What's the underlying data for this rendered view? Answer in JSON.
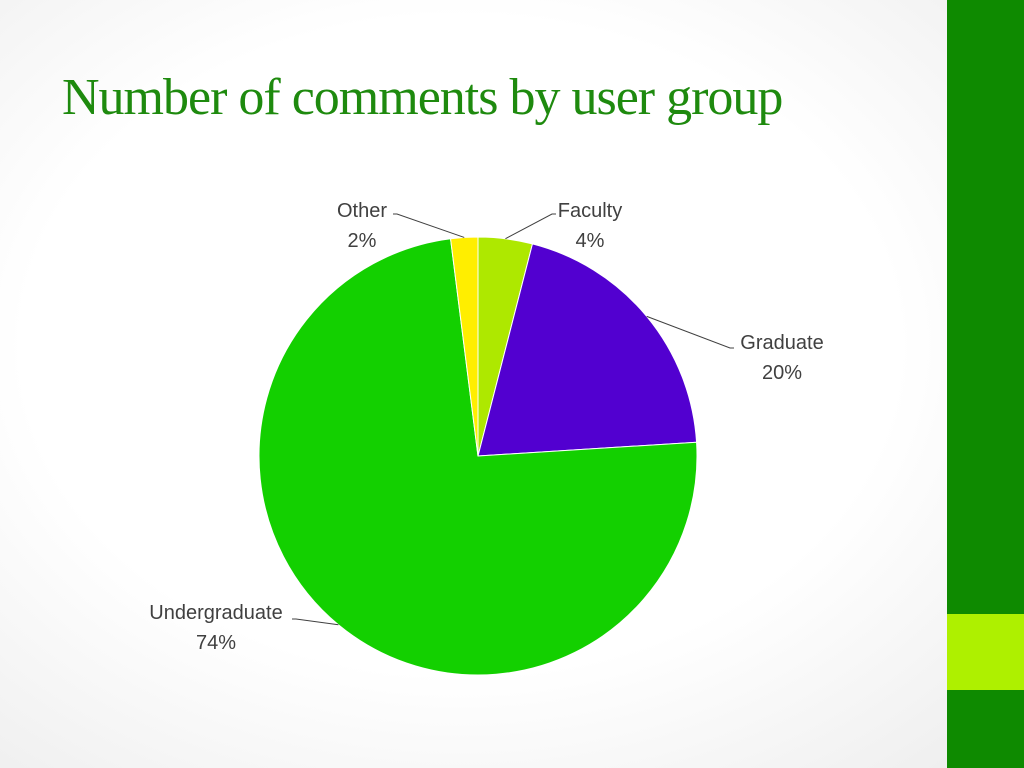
{
  "slide": {
    "title": "Number of comments by user group"
  },
  "colors": {
    "title": "#1e8a0e",
    "band": "#0e8a00",
    "band_accent": "#aef000"
  },
  "chart_data": {
    "type": "pie",
    "title": "Number of comments by user group",
    "labels_shown": "name-and-percent",
    "slices": [
      {
        "name": "Faculty",
        "value": 4,
        "label": "4%",
        "color": "#aee800"
      },
      {
        "name": "Graduate",
        "value": 20,
        "label": "20%",
        "color": "#5200d0"
      },
      {
        "name": "Undergraduate",
        "value": 74,
        "label": "74%",
        "color": "#13d000"
      },
      {
        "name": "Other",
        "value": 2,
        "label": "2%",
        "color": "#ffee00"
      }
    ]
  }
}
